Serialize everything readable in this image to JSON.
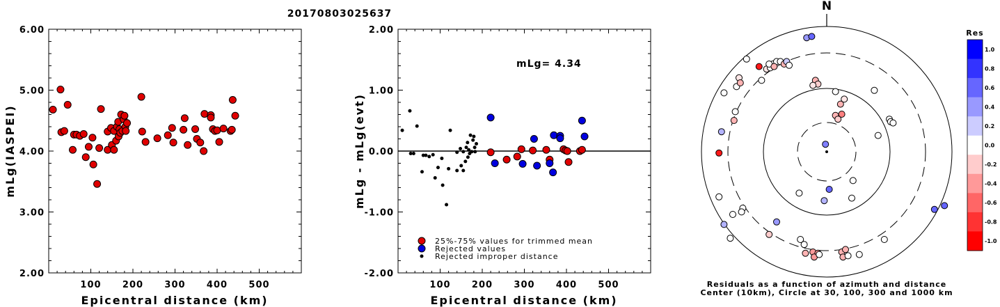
{
  "chart_data": [
    {
      "type": "scatter",
      "title": "20170803025637",
      "xlabel": "Epicentral distance (km)",
      "ylabel": "mLg(IASPEI)",
      "xlim": [
        0,
        600
      ],
      "ylim": [
        2.0,
        6.0
      ],
      "xticks": [
        "100",
        "200",
        "300",
        "400",
        "500"
      ],
      "yticks": [
        "2.00",
        "3.00",
        "4.00",
        "5.00",
        "6.00"
      ],
      "series": [
        {
          "color": "#e00000",
          "points": [
            [
              10,
              4.68
            ],
            [
              28,
              5.01
            ],
            [
              30,
              4.31
            ],
            [
              37,
              4.33
            ],
            [
              45,
              4.76
            ],
            [
              57,
              4.02
            ],
            [
              60,
              4.27
            ],
            [
              66,
              4.27
            ],
            [
              74,
              4.25
            ],
            [
              83,
              4.28
            ],
            [
              88,
              3.9
            ],
            [
              95,
              4.07
            ],
            [
              104,
              4.22
            ],
            [
              106,
              3.78
            ],
            [
              115,
              3.46
            ],
            [
              120,
              4.05
            ],
            [
              124,
              4.69
            ],
            [
              140,
              4.02
            ],
            [
              140,
              4.32
            ],
            [
              148,
              4.38
            ],
            [
              150,
              4.1
            ],
            [
              155,
              4.02
            ],
            [
              155,
              4.33
            ],
            [
              160,
              4.17
            ],
            [
              162,
              4.4
            ],
            [
              165,
              4.48
            ],
            [
              166,
              4.24
            ],
            [
              168,
              4.36
            ],
            [
              170,
              4.3
            ],
            [
              172,
              4.6
            ],
            [
              175,
              4.33
            ],
            [
              178,
              4.52
            ],
            [
              180,
              4.58
            ],
            [
              182,
              4.4
            ],
            [
              183,
              4.33
            ],
            [
              186,
              4.46
            ],
            [
              220,
              4.89
            ],
            [
              222,
              4.32
            ],
            [
              230,
              4.15
            ],
            [
              258,
              4.21
            ],
            [
              283,
              4.26
            ],
            [
              293,
              4.38
            ],
            [
              296,
              4.14
            ],
            [
              320,
              4.35
            ],
            [
              323,
              4.54
            ],
            [
              330,
              4.1
            ],
            [
              348,
              4.36
            ],
            [
              352,
              4.2
            ],
            [
              360,
              4.14
            ],
            [
              368,
              4.0
            ],
            [
              370,
              4.61
            ],
            [
              385,
              4.59
            ],
            [
              385,
              4.55
            ],
            [
              390,
              4.36
            ],
            [
              395,
              4.33
            ],
            [
              400,
              4.34
            ],
            [
              405,
              4.15
            ],
            [
              415,
              4.37
            ],
            [
              432,
              4.33
            ],
            [
              435,
              4.35
            ],
            [
              437,
              4.84
            ],
            [
              443,
              4.58
            ]
          ]
        }
      ]
    },
    {
      "type": "scatter",
      "xlabel": "Epicentral distance (km)",
      "ylabel": "mLg - mLg(evt)",
      "xlim": [
        0,
        600
      ],
      "ylim": [
        -2.0,
        2.0
      ],
      "xticks": [
        "100",
        "200",
        "300",
        "400",
        "500"
      ],
      "yticks": [
        "-2.00",
        "-1.00",
        "0.00",
        "1.00",
        "2.00"
      ],
      "annotation": "mLg= 4.34",
      "legend": [
        {
          "label": "25%-75% values for trimmed mean",
          "color": "#e00000"
        },
        {
          "label": "Rejected values",
          "color": "#0000e0"
        },
        {
          "label": "Rejected improper distance",
          "color": "#000000"
        }
      ],
      "series": [
        {
          "name": "25%-75% values for trimmed mean",
          "color": "#e00000",
          "points": [
            [
              220,
              -0.02
            ],
            [
              258,
              -0.14
            ],
            [
              283,
              -0.09
            ],
            [
              293,
              0.03
            ],
            [
              320,
              0.01
            ],
            [
              352,
              0.02
            ],
            [
              360,
              -0.14
            ],
            [
              393,
              0.03
            ],
            [
              398,
              0.01
            ],
            [
              402,
              0.0
            ],
            [
              405,
              -0.18
            ],
            [
              432,
              0.0
            ],
            [
              437,
              0.02
            ]
          ]
        },
        {
          "name": "Rejected values",
          "color": "#0000e0",
          "points": [
            [
              220,
              0.55
            ],
            [
              230,
              -0.2
            ],
            [
              296,
              -0.21
            ],
            [
              323,
              0.2
            ],
            [
              330,
              -0.24
            ],
            [
              360,
              -0.2
            ],
            [
              368,
              -0.35
            ],
            [
              370,
              0.26
            ],
            [
              385,
              0.25
            ],
            [
              385,
              0.21
            ],
            [
              437,
              0.5
            ],
            [
              443,
              0.24
            ]
          ]
        },
        {
          "name": "Rejected improper distance",
          "color": "#000000",
          "points": [
            [
              10,
              0.34
            ],
            [
              28,
              0.66
            ],
            [
              30,
              -0.04
            ],
            [
              37,
              -0.04
            ],
            [
              45,
              0.41
            ],
            [
              57,
              -0.34
            ],
            [
              60,
              -0.07
            ],
            [
              66,
              -0.07
            ],
            [
              74,
              -0.09
            ],
            [
              83,
              -0.06
            ],
            [
              88,
              -0.44
            ],
            [
              95,
              -0.27
            ],
            [
              104,
              -0.12
            ],
            [
              106,
              -0.56
            ],
            [
              115,
              -0.88
            ],
            [
              120,
              -0.29
            ],
            [
              124,
              0.34
            ],
            [
              140,
              -0.32
            ],
            [
              140,
              -0.02
            ],
            [
              148,
              0.04
            ],
            [
              150,
              -0.24
            ],
            [
              155,
              -0.32
            ],
            [
              155,
              -0.01
            ],
            [
              160,
              -0.17
            ],
            [
              162,
              0.06
            ],
            [
              165,
              0.14
            ],
            [
              166,
              -0.1
            ],
            [
              168,
              0.02
            ],
            [
              170,
              -0.04
            ],
            [
              172,
              0.26
            ],
            [
              175,
              -0.01
            ],
            [
              178,
              0.18
            ],
            [
              180,
              0.24
            ],
            [
              182,
              0.06
            ],
            [
              183,
              -0.01
            ],
            [
              186,
              0.12
            ]
          ]
        }
      ]
    },
    {
      "type": "scatter",
      "title": "N",
      "caption1": "Residuals as a function of azimuth and distance",
      "caption2": "Center (10km), Circle at 30, 100, 300 and 1000 km",
      "colorbar": {
        "label": "Res",
        "ticks": [
          "1.0",
          "0.8",
          "0.6",
          "0.4",
          "0.2",
          "0.0",
          "-0.2",
          "-0.4",
          "-0.6",
          "-0.8",
          "-1.0"
        ],
        "max_color": "#0000ff",
        "zero_color": "#ffffff",
        "min_color": "#ff0000"
      },
      "points_xy_res": [
        [
          -0.64,
          0.74,
          0.0
        ],
        [
          -0.54,
          0.68,
          -0.9
        ],
        [
          -0.48,
          0.66,
          -0.1
        ],
        [
          -0.45,
          0.67,
          0.0
        ],
        [
          -0.43,
          0.7,
          0.0
        ],
        [
          -0.4,
          0.72,
          0.0
        ],
        [
          -0.37,
          0.72,
          0.0
        ],
        [
          -0.34,
          0.7,
          -0.3
        ],
        [
          -0.32,
          0.72,
          0.2
        ],
        [
          -0.3,
          0.69,
          0.0
        ],
        [
          -0.16,
          0.91,
          0.4
        ],
        [
          -0.12,
          0.92,
          0.6
        ],
        [
          -0.72,
          0.52,
          0.0
        ],
        [
          -0.7,
          0.59,
          -0.1
        ],
        [
          -0.69,
          0.55,
          -0.3
        ],
        [
          -0.46,
          0.7,
          0.0
        ],
        [
          -0.42,
          0.68,
          -0.3
        ],
        [
          -0.73,
          0.32,
          0.0
        ],
        [
          -0.52,
          0.57,
          0.0
        ],
        [
          -0.82,
          0.47,
          0.0
        ],
        [
          -0.74,
          0.25,
          -0.3
        ],
        [
          -0.84,
          0.16,
          0.3
        ],
        [
          -0.86,
          -0.01,
          -0.9
        ],
        [
          -0.09,
          0.57,
          -0.3
        ],
        [
          -0.07,
          0.54,
          -0.2
        ],
        [
          -0.11,
          0.53,
          -0.1
        ],
        [
          0.07,
          0.48,
          0.0
        ],
        [
          0.07,
          0.29,
          -0.3
        ],
        [
          0.09,
          0.26,
          -0.2
        ],
        [
          0.12,
          0.3,
          -0.5
        ],
        [
          0.11,
          0.38,
          -0.3
        ],
        [
          0.14,
          0.42,
          -0.1
        ],
        [
          0.38,
          0.49,
          0.0
        ],
        [
          0.5,
          0.26,
          0.0
        ],
        [
          0.51,
          0.24,
          0.0
        ],
        [
          0.53,
          0.23,
          0.0
        ],
        [
          0.41,
          0.13,
          0.0
        ],
        [
          -0.01,
          0.06,
          0.5
        ],
        [
          0.02,
          -0.3,
          0.6
        ],
        [
          -0.22,
          -0.33,
          0.0
        ],
        [
          -0.02,
          -0.39,
          0.3
        ],
        [
          0.2,
          -0.37,
          0.0
        ],
        [
          0.21,
          -0.23,
          0.0
        ],
        [
          -0.86,
          -0.36,
          0.0
        ],
        [
          -0.75,
          -0.5,
          0.0
        ],
        [
          -0.67,
          -0.45,
          0.0
        ],
        [
          -0.68,
          -0.48,
          0.0
        ],
        [
          -0.82,
          -0.58,
          0.3
        ],
        [
          -0.4,
          -0.56,
          0.4
        ],
        [
          -0.46,
          -0.66,
          -0.2
        ],
        [
          -0.77,
          -0.69,
          0.0
        ],
        [
          -0.21,
          -0.7,
          0.0
        ],
        [
          -0.18,
          -0.74,
          0.0
        ],
        [
          -0.17,
          -0.81,
          -0.3
        ],
        [
          -0.11,
          -0.8,
          -0.4
        ],
        [
          -0.07,
          -0.81,
          -0.4
        ],
        [
          -0.1,
          -0.84,
          -0.4
        ],
        [
          -0.06,
          -0.82,
          0.0
        ],
        [
          0.12,
          -0.8,
          -0.3
        ],
        [
          0.13,
          -0.84,
          -0.3
        ],
        [
          0.17,
          -0.83,
          0.0
        ],
        [
          0.15,
          -0.78,
          -0.3
        ],
        [
          0.26,
          -0.82,
          0.0
        ],
        [
          0.86,
          -0.46,
          0.6
        ],
        [
          0.94,
          -0.43,
          0.6
        ],
        [
          0.46,
          -0.7,
          0.0
        ]
      ]
    }
  ]
}
